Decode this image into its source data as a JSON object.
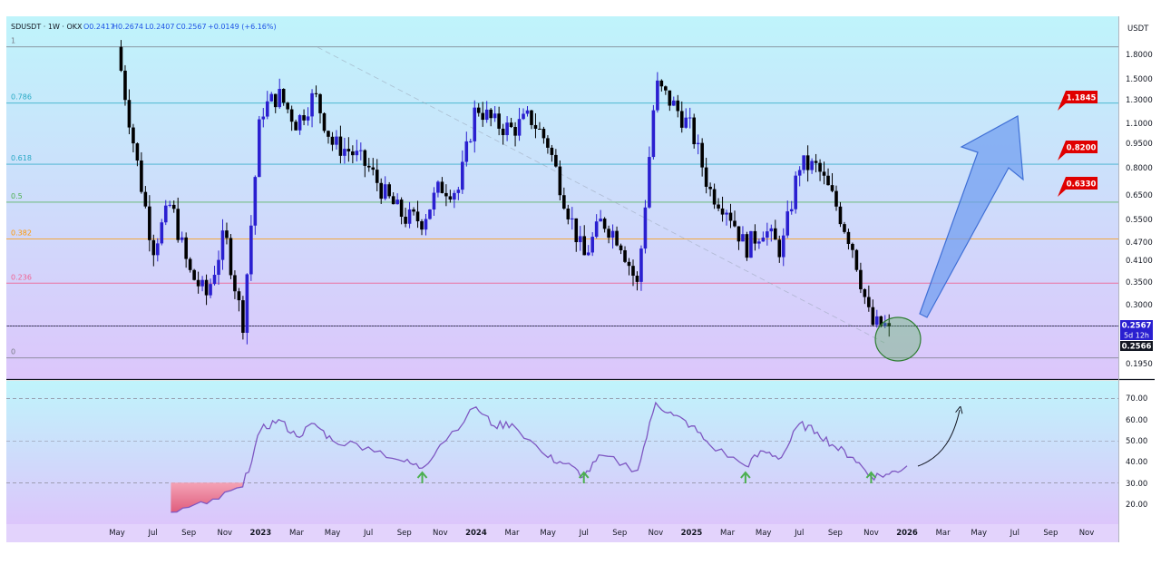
{
  "header": {
    "symbol": "SDUSDT · 1W · OKX",
    "o": "O0.2417",
    "h": "H0.2674",
    "l": "L0.2407",
    "c": "C0.2567",
    "chg": "+0.0149 (+6.16%)"
  },
  "currency": "USDT",
  "price_ticks": [
    "1.8000",
    "1.5000",
    "1.3000",
    "1.1000",
    "0.9500",
    "0.8000",
    "0.6500",
    "0.5500",
    "0.4700",
    "0.4100",
    "0.3500",
    "0.3000",
    "0.1950"
  ],
  "last_price": "0.2567",
  "countdown": "5d 12h",
  "last_price_2": "0.2566",
  "targets": [
    "1.1845",
    "0.8200",
    "0.6330"
  ],
  "fib_levels": [
    {
      "label": "1",
      "price": 1.9,
      "color": "#787b86"
    },
    {
      "label": "0.786",
      "price": 1.27,
      "color": "#26a8c4"
    },
    {
      "label": "0.618",
      "price": 0.82,
      "color": "#26a8c4"
    },
    {
      "label": "0.5",
      "price": 0.625,
      "color": "#4caf50"
    },
    {
      "label": "0.382",
      "price": 0.48,
      "color": "#ff9800"
    },
    {
      "label": "0.236",
      "price": 0.35,
      "color": "#f06292"
    },
    {
      "label": "0",
      "price": 0.205,
      "color": "#787b86"
    }
  ],
  "rsi_ticks": [
    "70.00",
    "60.00",
    "50.00",
    "40.00",
    "30.00",
    "20.00"
  ],
  "time_labels": [
    {
      "t": "May",
      "bold": false
    },
    {
      "t": "Jul",
      "bold": false
    },
    {
      "t": "Sep",
      "bold": false
    },
    {
      "t": "Nov",
      "bold": false
    },
    {
      "t": "2023",
      "bold": true
    },
    {
      "t": "Mar",
      "bold": false
    },
    {
      "t": "May",
      "bold": false
    },
    {
      "t": "Jul",
      "bold": false
    },
    {
      "t": "Sep",
      "bold": false
    },
    {
      "t": "Nov",
      "bold": false
    },
    {
      "t": "2024",
      "bold": true
    },
    {
      "t": "Mar",
      "bold": false
    },
    {
      "t": "May",
      "bold": false
    },
    {
      "t": "Jul",
      "bold": false
    },
    {
      "t": "Sep",
      "bold": false
    },
    {
      "t": "Nov",
      "bold": false
    },
    {
      "t": "2025",
      "bold": true
    },
    {
      "t": "Mar",
      "bold": false
    },
    {
      "t": "May",
      "bold": false
    },
    {
      "t": "Jul",
      "bold": false
    },
    {
      "t": "Sep",
      "bold": false
    },
    {
      "t": "Nov",
      "bold": false
    },
    {
      "t": "2026",
      "bold": true
    },
    {
      "t": "Mar",
      "bold": false
    },
    {
      "t": "May",
      "bold": false
    },
    {
      "t": "Jul",
      "bold": false
    },
    {
      "t": "Sep",
      "bold": false
    },
    {
      "t": "Nov",
      "bold": false
    }
  ],
  "colors": {
    "bull": "#2a1fd0",
    "bear": "#000000",
    "rsi": "#7e57c2",
    "target_bg": "#e00000",
    "arrow": "#6f9df0",
    "circle": "#4caf50",
    "rsi_arrow": "#4caf50"
  },
  "chart_data": [
    {
      "type": "candlestick",
      "title": "SDUSDT · 1W · OKX",
      "scale": "log",
      "ylim": [
        0.17,
        2.5
      ],
      "x_range": [
        "2022-05",
        "2026-12"
      ],
      "y_ticks": [
        1.8,
        1.5,
        1.3,
        1.1,
        0.95,
        0.8,
        0.65,
        0.55,
        0.47,
        0.41,
        0.35,
        0.3,
        0.195
      ],
      "close_path": [
        {
          "x": "2022-05",
          "y": 1.9
        },
        {
          "x": "2022-06",
          "y": 0.9
        },
        {
          "x": "2022-07",
          "y": 0.45
        },
        {
          "x": "2022-08",
          "y": 0.62
        },
        {
          "x": "2022-09",
          "y": 0.38
        },
        {
          "x": "2022-10",
          "y": 0.32
        },
        {
          "x": "2022-11",
          "y": 0.5
        },
        {
          "x": "2022-12",
          "y": 0.26
        },
        {
          "x": "2023-01",
          "y": 1.2
        },
        {
          "x": "2023-02",
          "y": 1.35
        },
        {
          "x": "2023-03",
          "y": 1.1
        },
        {
          "x": "2023-04",
          "y": 1.35
        },
        {
          "x": "2023-05",
          "y": 0.95
        },
        {
          "x": "2023-06",
          "y": 0.9
        },
        {
          "x": "2023-07",
          "y": 0.8
        },
        {
          "x": "2023-08",
          "y": 0.65
        },
        {
          "x": "2023-09",
          "y": 0.56
        },
        {
          "x": "2023-10",
          "y": 0.55
        },
        {
          "x": "2023-11",
          "y": 0.7
        },
        {
          "x": "2023-12",
          "y": 0.68
        },
        {
          "x": "2024-01",
          "y": 1.25
        },
        {
          "x": "2024-02",
          "y": 1.1
        },
        {
          "x": "2024-03",
          "y": 1.05
        },
        {
          "x": "2024-04",
          "y": 1.15
        },
        {
          "x": "2024-05",
          "y": 0.95
        },
        {
          "x": "2024-06",
          "y": 0.62
        },
        {
          "x": "2024-07",
          "y": 0.42
        },
        {
          "x": "2024-08",
          "y": 0.55
        },
        {
          "x": "2024-09",
          "y": 0.48
        },
        {
          "x": "2024-10",
          "y": 0.34
        },
        {
          "x": "2024-11",
          "y": 1.45
        },
        {
          "x": "2024-12",
          "y": 1.25
        },
        {
          "x": "2025-01",
          "y": 1.05
        },
        {
          "x": "2025-02",
          "y": 0.68
        },
        {
          "x": "2025-03",
          "y": 0.6
        },
        {
          "x": "2025-04",
          "y": 0.45
        },
        {
          "x": "2025-05",
          "y": 0.52
        },
        {
          "x": "2025-06",
          "y": 0.44
        },
        {
          "x": "2025-07",
          "y": 0.82
        },
        {
          "x": "2025-08",
          "y": 0.8
        },
        {
          "x": "2025-09",
          "y": 0.62
        },
        {
          "x": "2025-10",
          "y": 0.45
        },
        {
          "x": "2025-11",
          "y": 0.26
        },
        {
          "x": "2025-12",
          "y": 0.2567
        }
      ],
      "targets": [
        1.1845,
        0.82,
        0.633
      ],
      "last": 0.2567
    },
    {
      "type": "line",
      "title": "",
      "ylim": [
        13,
        75
      ],
      "y_ticks": [
        70,
        60,
        50,
        40,
        30,
        20
      ],
      "bands": [
        70,
        50,
        30
      ],
      "series": [
        {
          "values": [
            {
              "x": "2022-08",
              "y": 16
            },
            {
              "x": "2022-10",
              "y": 20
            },
            {
              "x": "2022-12",
              "y": 28
            },
            {
              "x": "2023-01",
              "y": 55
            },
            {
              "x": "2023-02",
              "y": 60
            },
            {
              "x": "2023-03",
              "y": 52
            },
            {
              "x": "2023-04",
              "y": 58
            },
            {
              "x": "2023-05",
              "y": 50
            },
            {
              "x": "2023-07",
              "y": 47
            },
            {
              "x": "2023-09",
              "y": 40
            },
            {
              "x": "2023-10",
              "y": 37
            },
            {
              "x": "2023-11",
              "y": 48
            },
            {
              "x": "2024-01",
              "y": 66
            },
            {
              "x": "2024-02",
              "y": 57
            },
            {
              "x": "2024-03",
              "y": 58
            },
            {
              "x": "2024-05",
              "y": 42
            },
            {
              "x": "2024-06",
              "y": 39
            },
            {
              "x": "2024-07",
              "y": 33
            },
            {
              "x": "2024-08",
              "y": 43
            },
            {
              "x": "2024-10",
              "y": 36
            },
            {
              "x": "2024-11",
              "y": 68
            },
            {
              "x": "2024-12",
              "y": 62
            },
            {
              "x": "2025-01",
              "y": 57
            },
            {
              "x": "2025-02",
              "y": 48
            },
            {
              "x": "2025-04",
              "y": 38
            },
            {
              "x": "2025-05",
              "y": 45
            },
            {
              "x": "2025-06",
              "y": 42
            },
            {
              "x": "2025-07",
              "y": 58
            },
            {
              "x": "2025-08",
              "y": 54
            },
            {
              "x": "2025-09",
              "y": 47
            },
            {
              "x": "2025-10",
              "y": 42
            },
            {
              "x": "2025-11",
              "y": 33
            },
            {
              "x": "2025-12",
              "y": 34
            },
            {
              "x": "2026-01",
              "y": 38
            }
          ]
        }
      ],
      "signals": [
        "2023-10",
        "2024-07",
        "2025-04",
        "2025-11"
      ]
    }
  ]
}
